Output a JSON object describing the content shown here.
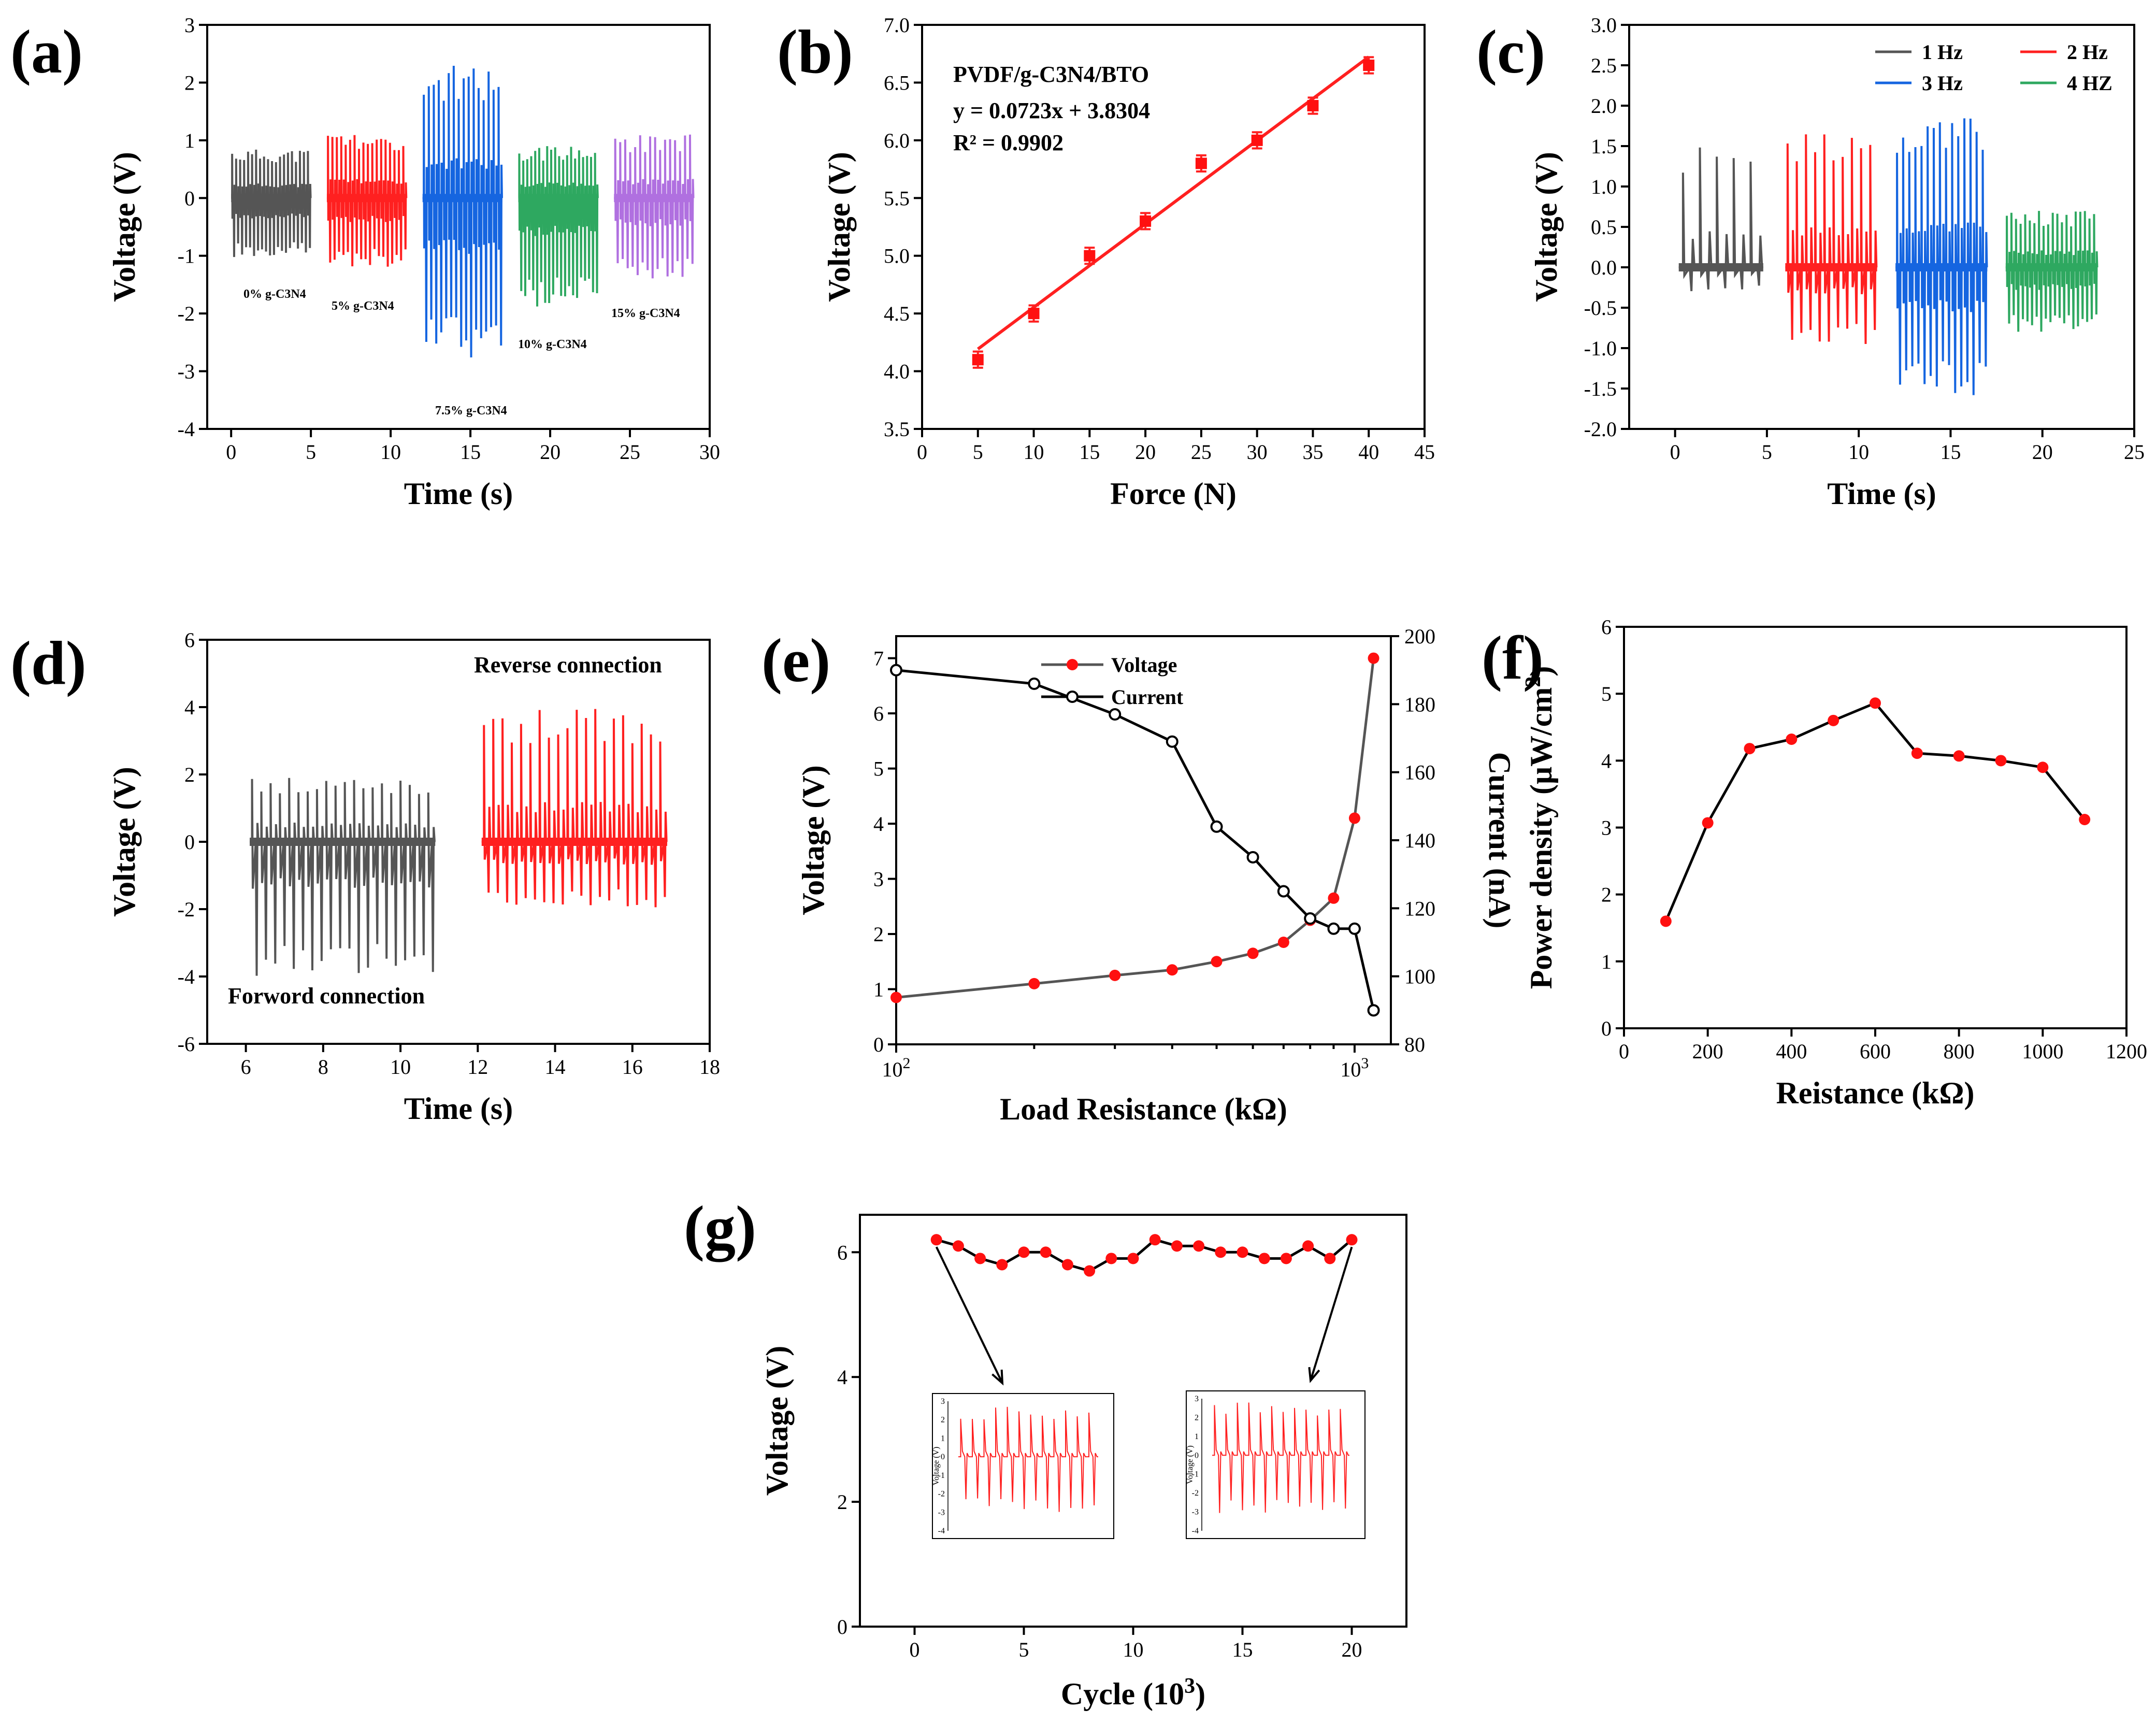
{
  "colors": {
    "black": "#000000",
    "gray": "#555555",
    "red": "#ff2020",
    "blue": "#1565e0",
    "green": "#2ea860",
    "purple": "#b070e0",
    "marker_red": "#ff1010"
  },
  "chart_data": [
    {
      "id": "a",
      "panel_label": "(a)",
      "type": "line",
      "title": "",
      "xlabel": "Time (s)",
      "ylabel": "Voltage (V)",
      "xlim": [
        -1.5,
        30
      ],
      "ylim": [
        -4,
        3
      ],
      "xticks": [
        0,
        5,
        10,
        15,
        20,
        25,
        30
      ],
      "yticks": [
        -4,
        -3,
        -2,
        -1,
        0,
        1,
        2,
        3
      ],
      "series": [
        {
          "name": "0% g-C3N4",
          "color": "#555555",
          "t_start": 0,
          "t_end": 5,
          "peaks": 20,
          "pos_amp": 0.85,
          "neg_amp": -1.05
        },
        {
          "name": "5% g-C3N4",
          "color": "#ff2020",
          "t_start": 6,
          "t_end": 11,
          "peaks": 18,
          "pos_amp": 1.1,
          "neg_amp": -1.2
        },
        {
          "name": "7.5% g-C3N4",
          "color": "#1565e0",
          "t_start": 12,
          "t_end": 17,
          "peaks": 16,
          "pos_amp": 2.3,
          "neg_amp": -2.8
        },
        {
          "name": "10% g-C3N4",
          "color": "#2ea860",
          "t_start": 18,
          "t_end": 23,
          "peaks": 20,
          "pos_amp": 0.9,
          "neg_amp": -1.9
        },
        {
          "name": "15% g-C3N4",
          "color": "#b070e0",
          "t_start": 24,
          "t_end": 29,
          "peaks": 16,
          "pos_amp": 1.1,
          "neg_amp": -1.4
        }
      ],
      "annotations": [
        "0% g-C3N4",
        "5% g-C3N4",
        "7.5% g-C3N4",
        "10% g-C3N4",
        "15% g-C3N4"
      ]
    },
    {
      "id": "b",
      "panel_label": "(b)",
      "type": "scatter",
      "title": "",
      "xlabel": "Force (N)",
      "ylabel": "Voltage (V)",
      "xlim": [
        0,
        45
      ],
      "ylim": [
        3.5,
        7.0
      ],
      "xticks": [
        0,
        5,
        10,
        15,
        20,
        25,
        30,
        35,
        40,
        45
      ],
      "yticks": [
        3.5,
        4.0,
        4.5,
        5.0,
        5.5,
        6.0,
        6.5,
        7.0
      ],
      "x": [
        5,
        10,
        15,
        20,
        25,
        30,
        35,
        40
      ],
      "y": [
        4.1,
        4.5,
        5.0,
        5.3,
        5.8,
        6.0,
        6.3,
        6.65
      ],
      "yerr": [
        0.07,
        0.07,
        0.07,
        0.07,
        0.07,
        0.07,
        0.07,
        0.07
      ],
      "fit": {
        "slope": 0.0723,
        "intercept": 3.8304,
        "x_range": [
          5,
          40
        ]
      },
      "annotations": [
        "PVDF/g-C3N4/BTO",
        "y = 0.0723x + 3.8304",
        "R² = 0.9902"
      ]
    },
    {
      "id": "c",
      "panel_label": "(c)",
      "type": "line",
      "title": "",
      "xlabel": "Time (s)",
      "ylabel": "Voltage (V)",
      "xlim": [
        -2.5,
        25
      ],
      "ylim": [
        -2.0,
        3.0
      ],
      "xticks": [
        0,
        5,
        10,
        15,
        20,
        25
      ],
      "yticks": [
        -2.0,
        -1.5,
        -1.0,
        -0.5,
        0.0,
        0.5,
        1.0,
        1.5,
        2.0,
        2.5,
        3.0
      ],
      "series": [
        {
          "name": "1 Hz",
          "color": "#555555",
          "t_start": 0.2,
          "t_end": 4.8,
          "peaks": 5,
          "pos_amp": 1.55,
          "neg_amp": -0.3
        },
        {
          "name": "2 Hz",
          "color": "#ff2020",
          "t_start": 6,
          "t_end": 11,
          "peaks": 10,
          "pos_amp": 1.7,
          "neg_amp": -0.95
        },
        {
          "name": "3 Hz",
          "color": "#1565e0",
          "t_start": 12,
          "t_end": 17,
          "peaks": 15,
          "pos_amp": 1.85,
          "neg_amp": -1.6
        },
        {
          "name": "4 HZ",
          "color": "#2ea860",
          "t_start": 18,
          "t_end": 23,
          "peaks": 20,
          "pos_amp": 0.7,
          "neg_amp": -0.8
        }
      ],
      "legend": [
        "1 Hz",
        "2 Hz",
        "3 Hz",
        "4 HZ"
      ]
    },
    {
      "id": "d",
      "panel_label": "(d)",
      "type": "line",
      "title": "",
      "xlabel": "Time (s)",
      "ylabel": "Voltage (V)",
      "xlim": [
        5,
        18
      ],
      "ylim": [
        -6,
        6
      ],
      "xticks": [
        6,
        8,
        10,
        12,
        14,
        16,
        18
      ],
      "yticks": [
        -6,
        -4,
        -2,
        0,
        2,
        4,
        6
      ],
      "series": [
        {
          "name": "Forword connection",
          "color": "#555555",
          "t_start": 6.1,
          "t_end": 10.9,
          "peaks": 20,
          "pos_amp": 1.95,
          "neg_amp": -4.0
        },
        {
          "name": "Reverse connection",
          "color": "#ff2020",
          "t_start": 12.1,
          "t_end": 16.9,
          "peaks": 20,
          "pos_amp": 4.0,
          "neg_amp": -1.95
        }
      ],
      "annotations": [
        "Reverse connection",
        "Forword connection"
      ]
    },
    {
      "id": "e",
      "panel_label": "(e)",
      "type": "line",
      "title": "",
      "xlabel": "Load Resistance (kΩ)",
      "ylabel": "Voltage (V)",
      "y2label": "Current (nA)",
      "xscale": "log",
      "xlim": [
        100,
        1200
      ],
      "ylim": [
        0,
        7.4
      ],
      "y2lim": [
        80,
        200
      ],
      "xticks": [
        100,
        1000
      ],
      "xtick_base": "10",
      "xtick_exps": [
        "2",
        "3"
      ],
      "yticks": [
        0,
        1,
        2,
        3,
        4,
        5,
        6,
        7
      ],
      "y2ticks": [
        80,
        100,
        120,
        140,
        160,
        180,
        200
      ],
      "x": [
        100,
        200,
        300,
        400,
        500,
        600,
        700,
        800,
        900,
        1000,
        1100
      ],
      "series": [
        {
          "name": "Voltage",
          "axis": "left",
          "color": "#ff1010",
          "values": [
            0.85,
            1.1,
            1.25,
            1.35,
            1.5,
            1.65,
            1.85,
            2.25,
            2.65,
            4.1,
            7.0
          ]
        },
        {
          "name": "Current",
          "axis": "right",
          "color": "#000000",
          "values": [
            190,
            186,
            177,
            169,
            144,
            135,
            125,
            117,
            114,
            114,
            90
          ]
        }
      ],
      "legend": [
        "Voltage",
        "Current"
      ]
    },
    {
      "id": "f",
      "panel_label": "(f)",
      "type": "line",
      "title": "",
      "xlabel": "Reistance (kΩ)",
      "ylabel": "Power density (μW/cm²)",
      "ylabel_base": "Power density (μW/cm",
      "ylabel_sup": "2",
      "ylabel_close": ")",
      "xlim": [
        0,
        1200
      ],
      "ylim": [
        0,
        6
      ],
      "xticks": [
        0,
        200,
        400,
        600,
        800,
        1000,
        1200
      ],
      "yticks": [
        0,
        1,
        2,
        3,
        4,
        5,
        6
      ],
      "x": [
        100,
        200,
        300,
        400,
        500,
        600,
        700,
        800,
        900,
        1000,
        1100
      ],
      "y": [
        1.6,
        3.07,
        4.18,
        4.32,
        4.6,
        4.86,
        4.11,
        4.07,
        4.0,
        3.9,
        3.12
      ]
    },
    {
      "id": "g",
      "panel_label": "(g)",
      "type": "line",
      "title": "",
      "xlabel": "Cycle (10³)",
      "xlabel_base": "Cycle (10",
      "xlabel_sup": "3",
      "xlabel_close": ")",
      "ylabel": "Voltage (V)",
      "xlim": [
        -2.5,
        22.5
      ],
      "ylim": [
        0,
        6.6
      ],
      "xticks": [
        0,
        5,
        10,
        15,
        20
      ],
      "yticks": [
        0,
        2,
        4,
        6
      ],
      "x": [
        1,
        2,
        3,
        4,
        5,
        6,
        7,
        8,
        9,
        10,
        11,
        12,
        13,
        14,
        15,
        16,
        17,
        18,
        19,
        20
      ],
      "y": [
        6.2,
        6.1,
        5.9,
        5.8,
        6.0,
        6.0,
        5.8,
        5.7,
        5.9,
        5.9,
        6.2,
        6.1,
        6.1,
        6.0,
        6.0,
        5.9,
        5.9,
        6.1,
        5.9,
        6.2
      ],
      "insets": [
        {
          "ylabel": "Voltage (V)",
          "yticks": [
            "3",
            "2",
            "1",
            "0",
            "-1",
            "-2",
            "-3",
            "-4"
          ],
          "peaks": 12,
          "pos_amp": 2.7,
          "neg_amp": -3.0
        },
        {
          "ylabel": "Voltage (V)",
          "yticks": [
            "3",
            "2",
            "1",
            "0",
            "-1",
            "-2",
            "-3",
            "-4"
          ],
          "peaks": 12,
          "pos_amp": 2.8,
          "neg_amp": -3.1
        }
      ]
    }
  ]
}
